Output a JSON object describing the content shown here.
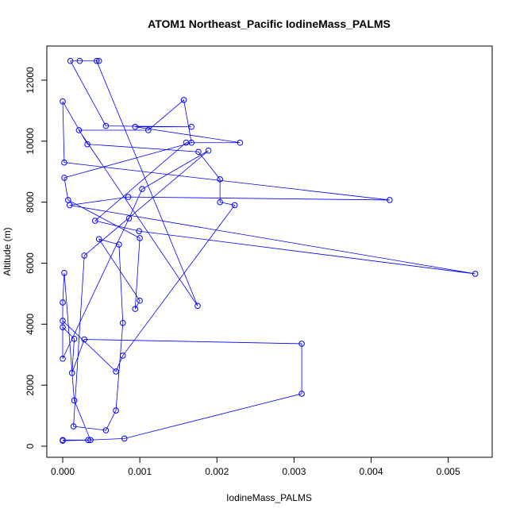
{
  "chart_data": {
    "type": "line",
    "title": "ATOM1 Northeast_Pacific IodineMass_PALMS",
    "xlabel": "IodineMass_PALMS",
    "ylabel": "Altitude (m)",
    "color": "#0000ff",
    "x": [
      0,
      0.00033,
      0.0008,
      0.0031,
      0.0031,
      0.00028,
      0.00012,
      0.00015,
      0,
      0,
      0.00069,
      0.00078,
      0.00223,
      0.00204,
      0.00204,
      0.00176,
      0.00032,
      0,
      2e-05,
      0.00424,
      0.00085,
      9e-05,
      0.00535,
      0.00099,
      0.00042,
      0.0016,
      0.0023,
      0.00094,
      0.00167,
      0.00056,
      0.0001,
      0.00022,
      0.00047,
      0.00044,
      0.00175,
      0.00021,
      0.00111,
      0.00157,
      0.00167,
      2e-05,
      7e-05,
      0.001,
      0.00094,
      0.001,
      0.00047,
      0.00073,
      0.00078,
      0.00069,
      0.00056,
      0.00014,
      0.00028,
      0.00189,
      0.00103,
      0.00086,
      0,
      0,
      2e-05,
      0.00015,
      0.00036,
      0
    ],
    "values": [
      180,
      200,
      250,
      1720,
      3360,
      3500,
      2400,
      3520,
      3900,
      4110,
      2450,
      2970,
      7900,
      8000,
      8750,
      9650,
      9900,
      11300,
      9300,
      8070,
      8170,
      7900,
      5650,
      7050,
      7390,
      9950,
      9950,
      10470,
      10470,
      10500,
      12630,
      12630,
      12630,
      12630,
      4600,
      10360,
      10360,
      11350,
      9950,
      8800,
      8070,
      6820,
      4500,
      4770,
      6790,
      6610,
      4040,
      1170,
      520,
      650,
      6250,
      9690,
      8430,
      7470,
      2870,
      4710,
      5680,
      1500,
      200,
      200
    ],
    "xlim": [
      -0.000206,
      0.00557
    ],
    "ylim": [
      -364,
      13118
    ],
    "xticks": [
      {
        "value": 0,
        "label": "0.000"
      },
      {
        "value": 0.001,
        "label": "0.001"
      },
      {
        "value": 0.002,
        "label": "0.002"
      },
      {
        "value": 0.003,
        "label": "0.003"
      },
      {
        "value": 0.004,
        "label": "0.004"
      },
      {
        "value": 0.005,
        "label": "0.005"
      }
    ],
    "yticks": [
      0,
      2000,
      4000,
      6000,
      8000,
      10000,
      12000
    ]
  }
}
